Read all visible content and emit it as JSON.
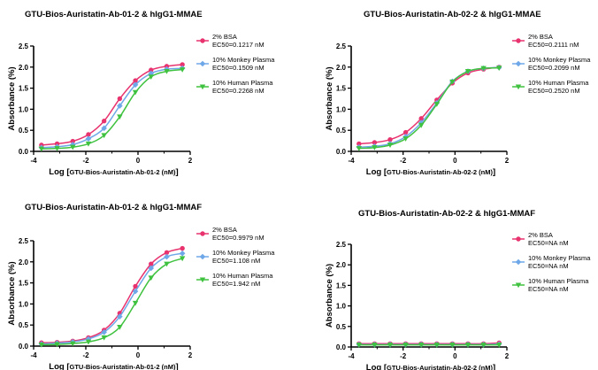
{
  "chart_data": [
    {
      "type": "line",
      "title": "GTU-Bios-Auristatin-Ab-01-2 & hIgG1-MMAE",
      "ylabel": "Absorbance (%)",
      "xlabel_prefix": "Log [",
      "xlabel_inner": "GTU-Bios-Auristatin-Ab-01-2 (nM)",
      "xlabel_suffix": "]",
      "xlim": [
        -4,
        2
      ],
      "ylim": [
        0,
        2.5
      ],
      "xticks": [
        -4,
        -2,
        0,
        2
      ],
      "xtick_labels": [
        "-4",
        "-2",
        "0",
        "2"
      ],
      "yticks": [
        0,
        0.5,
        1,
        1.5,
        2,
        2.5
      ],
      "ytick_labels": [
        "0.0",
        "0.5",
        "1.0",
        "1.5",
        "2.0",
        "2.5"
      ],
      "x": [
        -3.7,
        -3.1,
        -2.5,
        -1.9,
        -1.3,
        -0.7,
        -0.1,
        0.5,
        1.1,
        1.7
      ],
      "series": [
        {
          "name": "2% BSA",
          "ec50": "EC50=0.1217 nM",
          "color": "#e8336f",
          "marker": "circle",
          "values": [
            0.15,
            0.18,
            0.24,
            0.4,
            0.72,
            1.25,
            1.68,
            1.93,
            2.02,
            2.06
          ]
        },
        {
          "name": "10% Monkey Plasma",
          "ec50": "EC50=0.1509 nM",
          "color": "#6fa8e8",
          "marker": "diamond",
          "values": [
            0.09,
            0.11,
            0.16,
            0.3,
            0.55,
            1.08,
            1.58,
            1.85,
            1.95,
            1.97
          ]
        },
        {
          "name": "10% Human Plasma",
          "ec50": "EC50=0.2268  nM",
          "color": "#3fc23f",
          "marker": "triangle",
          "values": [
            0.06,
            0.07,
            0.1,
            0.18,
            0.38,
            0.82,
            1.4,
            1.77,
            1.9,
            1.94
          ]
        }
      ]
    },
    {
      "type": "line",
      "title": "GTU-Bios-Auristatin-Ab-02-2 & hIgG1-MMAE",
      "ylabel": "Absorbance (%)",
      "xlabel_prefix": "Log [",
      "xlabel_inner": "GTU-Bios-Auristatin-Ab-02-2 (nM)",
      "xlabel_suffix": "]",
      "xlim": [
        -4,
        2
      ],
      "ylim": [
        0,
        2.5
      ],
      "xticks": [
        -4,
        -2,
        0,
        2
      ],
      "xtick_labels": [
        "-4",
        "-2",
        "0",
        "2"
      ],
      "yticks": [
        0,
        0.5,
        1,
        1.5,
        2,
        2.5
      ],
      "ytick_labels": [
        "0.0",
        "0.5",
        "1.0",
        "1.5",
        "2.0",
        "2.5"
      ],
      "x": [
        -3.7,
        -3.1,
        -2.5,
        -1.9,
        -1.3,
        -0.7,
        -0.1,
        0.5,
        1.1,
        1.7
      ],
      "series": [
        {
          "name": "2% BSA",
          "ec50": "EC50=0.2111 nM",
          "color": "#e8336f",
          "marker": "circle",
          "values": [
            0.18,
            0.21,
            0.28,
            0.45,
            0.78,
            1.22,
            1.62,
            1.86,
            1.95,
            2.0
          ]
        },
        {
          "name": "10% Monkey Plasma",
          "ec50": "EC50=0.2099  nM",
          "color": "#6fa8e8",
          "marker": "diamond",
          "values": [
            0.1,
            0.12,
            0.18,
            0.35,
            0.68,
            1.15,
            1.66,
            1.9,
            1.97,
            1.99
          ]
        },
        {
          "name": "10% Human Plasma",
          "ec50": "EC50=0.2520  nM",
          "color": "#3fc23f",
          "marker": "triangle",
          "values": [
            0.07,
            0.09,
            0.15,
            0.3,
            0.62,
            1.12,
            1.65,
            1.9,
            1.97,
            1.98
          ]
        }
      ]
    },
    {
      "type": "line",
      "title": "GTU-Bios-Auristatin-Ab-01-2 & hIgG1-MMAF",
      "ylabel": "Absorbance (%)",
      "xlabel_prefix": "Log [",
      "xlabel_inner": "GTU-Bios-Auristatin-Ab-01-2 (nM)",
      "xlabel_suffix": "]",
      "xlim": [
        -4,
        2
      ],
      "ylim": [
        0,
        2.5
      ],
      "xticks": [
        -4,
        -2,
        0,
        2
      ],
      "xtick_labels": [
        "-4",
        "-2",
        "0",
        "2"
      ],
      "yticks": [
        0,
        0.5,
        1,
        1.5,
        2,
        2.5
      ],
      "ytick_labels": [
        "0.0",
        "0.5",
        "1.0",
        "1.5",
        "2.0",
        "2.5"
      ],
      "x": [
        -3.7,
        -3.1,
        -2.5,
        -1.9,
        -1.3,
        -0.7,
        -0.1,
        0.5,
        1.1,
        1.7
      ],
      "series": [
        {
          "name": "2% BSA",
          "ec50": "EC50=0.9979 nM",
          "color": "#e8336f",
          "marker": "circle",
          "values": [
            0.08,
            0.09,
            0.12,
            0.2,
            0.38,
            0.78,
            1.42,
            1.95,
            2.22,
            2.32
          ]
        },
        {
          "name": "10% Monkey Plasma",
          "ec50": "EC50=1.108  nM",
          "color": "#6fa8e8",
          "marker": "diamond",
          "values": [
            0.05,
            0.07,
            0.1,
            0.17,
            0.33,
            0.7,
            1.3,
            1.85,
            2.12,
            2.2
          ]
        },
        {
          "name": "10% Human Plasma",
          "ec50": "EC50=1.942  nM",
          "color": "#3fc23f",
          "marker": "triangle",
          "values": [
            0.03,
            0.04,
            0.06,
            0.1,
            0.2,
            0.45,
            1.02,
            1.62,
            1.95,
            2.08
          ]
        }
      ]
    },
    {
      "type": "line",
      "title": "GTU-Bios-Auristatin-Ab-02-2 & hIgG1-MMAF",
      "ylabel": "Absorbance (%)",
      "xlabel_prefix": "Log [",
      "xlabel_inner": "GTU-Bios-Auristatin-Ab-02-2 (nM)",
      "xlabel_suffix": "]",
      "xlim": [
        -4,
        2
      ],
      "ylim": [
        0,
        2.5
      ],
      "xticks": [
        -4,
        -2,
        0,
        2
      ],
      "xtick_labels": [
        "-4",
        "-2",
        "0",
        "2"
      ],
      "yticks": [
        0,
        0.5,
        1,
        1.5,
        2,
        2.5
      ],
      "ytick_labels": [
        "0.0",
        "0.5",
        "1.0",
        "1.5",
        "2.0",
        "2.5"
      ],
      "x": [
        -3.7,
        -3.1,
        -2.5,
        -1.9,
        -1.3,
        -0.7,
        -0.1,
        0.5,
        1.1,
        1.7
      ],
      "series": [
        {
          "name": "2% BSA",
          "ec50": "EC50=NA nM",
          "color": "#e8336f",
          "marker": "circle",
          "values": [
            0.08,
            0.08,
            0.08,
            0.08,
            0.08,
            0.08,
            0.08,
            0.08,
            0.08,
            0.1
          ]
        },
        {
          "name": "10% Monkey Plasma",
          "ec50": "EC50=NA  nM",
          "color": "#6fa8e8",
          "marker": "diamond",
          "values": [
            0.06,
            0.06,
            0.06,
            0.06,
            0.06,
            0.06,
            0.06,
            0.06,
            0.06,
            0.07
          ]
        },
        {
          "name": "10% Human Plasma",
          "ec50": "EC50=NA  nM",
          "color": "#3fc23f",
          "marker": "triangle",
          "values": [
            0.05,
            0.05,
            0.05,
            0.05,
            0.05,
            0.05,
            0.05,
            0.05,
            0.05,
            0.05
          ]
        }
      ]
    }
  ]
}
